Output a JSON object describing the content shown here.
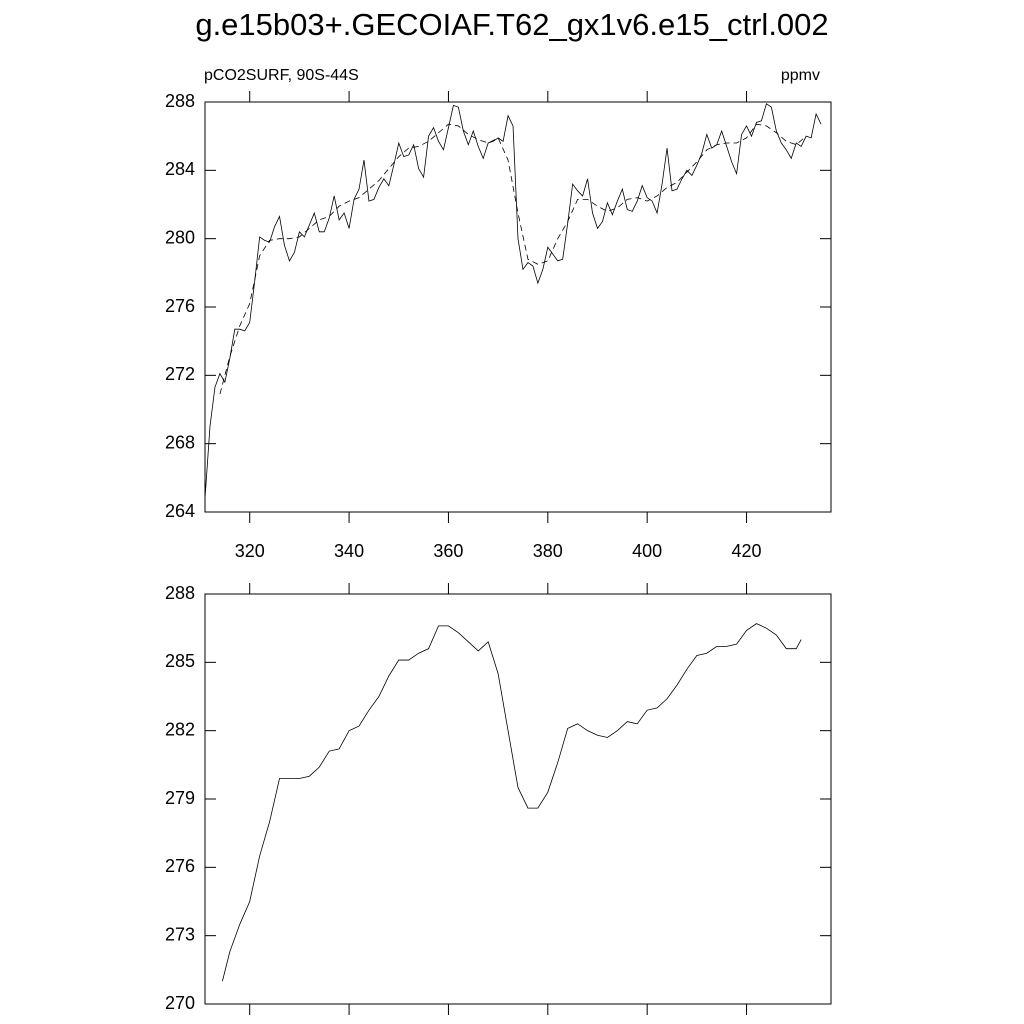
{
  "chart_data": [
    {
      "type": "line",
      "title": "g.e15b03+.GECOIAF.T62_gx1v6.e15_ctrl.002",
      "subtitle_left": "pCO2SURF, 90S-44S",
      "subtitle_right": "ppmv",
      "xlim": [
        311,
        437
      ],
      "xticks": [
        320,
        340,
        360,
        380,
        400,
        420
      ],
      "ylim": [
        264,
        288
      ],
      "yticks": [
        264,
        268,
        272,
        276,
        280,
        284,
        288
      ],
      "show_xtick_labels": true,
      "series": [
        {
          "color": "#000000",
          "dash": false,
          "x": [
            311,
            312,
            313,
            314,
            315,
            316,
            317,
            318,
            319,
            320,
            321,
            322,
            323,
            324,
            325,
            326,
            327,
            328,
            329,
            330,
            331,
            332,
            333,
            334,
            335,
            336,
            337,
            338,
            339,
            340,
            341,
            342,
            343,
            344,
            345,
            346,
            347,
            348,
            349,
            350,
            351,
            352,
            353,
            354,
            355,
            356,
            357,
            358,
            359,
            360,
            361,
            362,
            363,
            364,
            365,
            366,
            367,
            368,
            369,
            370,
            371,
            372,
            373,
            374,
            375,
            376,
            377,
            378,
            379,
            380,
            381,
            382,
            383,
            384,
            385,
            386,
            387,
            388,
            389,
            390,
            391,
            392,
            393,
            394,
            395,
            396,
            397,
            398,
            399,
            400,
            401,
            402,
            403,
            404,
            405,
            406,
            407,
            408,
            409,
            410,
            411,
            412,
            413,
            414,
            415,
            416,
            417,
            418,
            419,
            420,
            421,
            422,
            423,
            424,
            425,
            426,
            427,
            428,
            429,
            430,
            431,
            432,
            433,
            434,
            435
          ],
          "values": [
            264.8,
            269,
            271.3,
            272.1,
            271.6,
            273,
            274.7,
            274.7,
            274.6,
            275.1,
            277.5,
            280.1,
            279.9,
            279.8,
            280.7,
            281.3,
            279.6,
            278.7,
            279.2,
            280.4,
            280.1,
            280.8,
            281.5,
            280.4,
            280.4,
            281.2,
            282.5,
            281.1,
            281.5,
            280.6,
            282.3,
            282.9,
            284.6,
            282.2,
            282.3,
            283,
            283.5,
            283.1,
            284.3,
            285.6,
            284.8,
            284.9,
            285.5,
            284.1,
            283.6,
            286,
            286.5,
            285.7,
            285.2,
            286.5,
            287.8,
            287.7,
            286.3,
            285.5,
            286.3,
            285.4,
            284.7,
            285.6,
            285.7,
            285.9,
            285.7,
            287.2,
            286.6,
            280,
            278.2,
            278.6,
            278.4,
            277.4,
            278.2,
            279.5,
            279.1,
            278.7,
            278.8,
            280.9,
            283.2,
            282.8,
            282.5,
            283.5,
            281.5,
            280.6,
            281,
            282.1,
            281.4,
            282.2,
            282.9,
            281.7,
            281.6,
            282.2,
            283.1,
            282.4,
            282.2,
            281.5,
            283.2,
            285.3,
            282.8,
            282.9,
            283.5,
            284,
            283.7,
            284.3,
            285,
            286.1,
            285.3,
            285.5,
            286.3,
            285.4,
            284.5,
            283.8,
            286.1,
            286.6,
            286,
            286.8,
            286.9,
            287.9,
            287.7,
            286.3,
            285.6,
            285.2,
            284.7,
            285.6,
            285.4,
            286,
            285.9,
            287.3,
            286.7
          ]
        },
        {
          "color": "#000000",
          "dash": true,
          "x": [
            314,
            316,
            318,
            320,
            322,
            324,
            326,
            328,
            330,
            332,
            334,
            336,
            338,
            340,
            342,
            344,
            346,
            348,
            350,
            352,
            354,
            356,
            358,
            360,
            362,
            364,
            366,
            368,
            370,
            372,
            374,
            376,
            378,
            380,
            382,
            384,
            386,
            388,
            390,
            392,
            394,
            396,
            398,
            400,
            402,
            404,
            406,
            408,
            410,
            412,
            414,
            416,
            418,
            420,
            422,
            424,
            426,
            428,
            430,
            432
          ],
          "values": [
            270.9,
            273.1,
            274.9,
            276.2,
            279,
            279.9,
            280,
            280,
            280.1,
            280.6,
            281.1,
            281.3,
            281.9,
            282.2,
            282.4,
            282.9,
            283.4,
            284.1,
            284.8,
            285.3,
            285.4,
            285.7,
            286.2,
            286.7,
            286.6,
            286.1,
            285.8,
            285.6,
            285.9,
            284.6,
            281.5,
            278.8,
            278.5,
            278.7,
            280,
            281,
            282.3,
            282.3,
            281.9,
            281.6,
            281.8,
            282.3,
            282.4,
            282.2,
            282.5,
            283,
            283.3,
            283.9,
            284.5,
            285.2,
            285.5,
            285.6,
            285.6,
            285.9,
            286.7,
            286.6,
            286.2,
            285.7,
            285.5,
            286
          ]
        }
      ]
    },
    {
      "type": "line",
      "xlim": [
        311,
        437
      ],
      "xticks": [
        320,
        340,
        360,
        380,
        400,
        420
      ],
      "ylim": [
        270,
        288
      ],
      "yticks": [
        270,
        273,
        276,
        279,
        282,
        285,
        288
      ],
      "show_xtick_labels": false,
      "series": [
        {
          "color": "#000000",
          "dash": false,
          "x": [
            314.5,
            316,
            318,
            320,
            322,
            324,
            326,
            328,
            330,
            332,
            334,
            336,
            338,
            340,
            342,
            344,
            346,
            348,
            350,
            352,
            354,
            356,
            358,
            360,
            362,
            364,
            366,
            368,
            370,
            372,
            374,
            376,
            378,
            380,
            382,
            384,
            386,
            388,
            390,
            392,
            394,
            396,
            398,
            400,
            402,
            404,
            406,
            408,
            410,
            412,
            414,
            416,
            418,
            420,
            422,
            424,
            426,
            428,
            430,
            431
          ],
          "values": [
            271,
            272.3,
            273.5,
            274.5,
            276.5,
            278,
            279.9,
            279.9,
            279.9,
            280,
            280.4,
            281.1,
            281.2,
            282,
            282.2,
            282.9,
            283.5,
            284.4,
            285.1,
            285.1,
            285.4,
            285.6,
            286.6,
            286.6,
            286.3,
            285.9,
            285.5,
            285.9,
            284.5,
            282,
            279.5,
            278.6,
            278.6,
            279.3,
            280.6,
            282.1,
            282.3,
            282,
            281.8,
            281.7,
            282,
            282.4,
            282.3,
            282.9,
            283,
            283.4,
            284,
            284.7,
            285.3,
            285.4,
            285.7,
            285.7,
            285.8,
            286.4,
            286.7,
            286.5,
            286.2,
            285.6,
            285.6,
            286
          ]
        }
      ]
    }
  ]
}
